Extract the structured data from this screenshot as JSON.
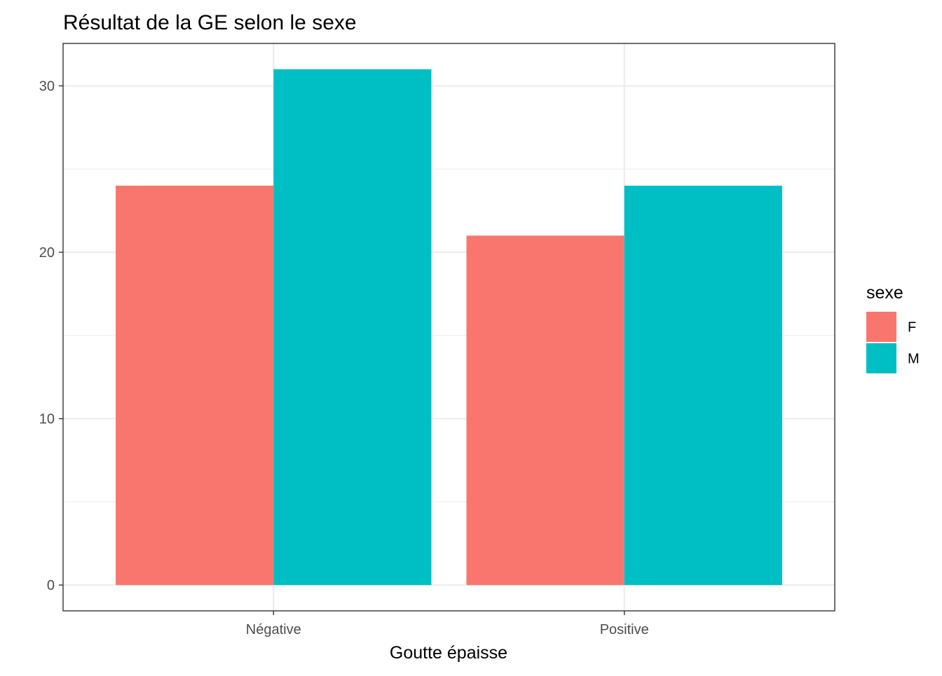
{
  "chart_data": {
    "type": "bar",
    "title": "Résultat de la GE selon le sexe",
    "xlabel": "Goutte épaisse",
    "ylabel": "",
    "categories": [
      "Négative",
      "Positive"
    ],
    "series": [
      {
        "name": "F",
        "color": "#F8766D",
        "values": [
          24,
          21
        ]
      },
      {
        "name": "M",
        "color": "#00BFC4",
        "values": [
          31,
          24
        ]
      }
    ],
    "ylim": [
      -1.55,
      32.55
    ],
    "yticks": [
      0,
      10,
      20,
      30
    ],
    "ytick_labels": [
      "0",
      "10",
      "20",
      "30"
    ],
    "minor_yticks": [
      5,
      15,
      25
    ],
    "grid": true,
    "legend": {
      "title": "sexe",
      "placement": "right"
    }
  }
}
